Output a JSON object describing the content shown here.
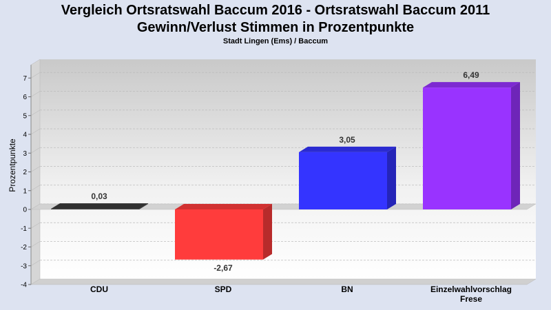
{
  "chart_data": {
    "type": "bar",
    "title": "Vergleich Ortsratswahl Baccum 2016 - Ortsratswahl Baccum 2011",
    "title_line2": "Gewinn/Verlust Stimmen in Prozentpunkte",
    "subtitle": "Stadt Lingen (Ems) / Baccum",
    "ylabel": "Prozentpunkte",
    "xlabel": "",
    "ylim": [
      -4,
      7.7
    ],
    "yticks": [
      -4,
      -3,
      -2,
      -1,
      0,
      1,
      2,
      3,
      4,
      5,
      6,
      7
    ],
    "grid": true,
    "categories": [
      {
        "line1": "CDU",
        "line2": ""
      },
      {
        "line1": "SPD",
        "line2": ""
      },
      {
        "line1": "BN",
        "line2": ""
      },
      {
        "line1": "Einzelwahlvorschlag",
        "line2": "Frese"
      }
    ],
    "values": [
      0.03,
      -2.67,
      3.05,
      6.49
    ],
    "value_labels": [
      "0,03",
      "-2,67",
      "3,05",
      "6,49"
    ],
    "colors": [
      "#3a3a3a",
      "#ff3c3c",
      "#3434ff",
      "#9933ff"
    ]
  }
}
